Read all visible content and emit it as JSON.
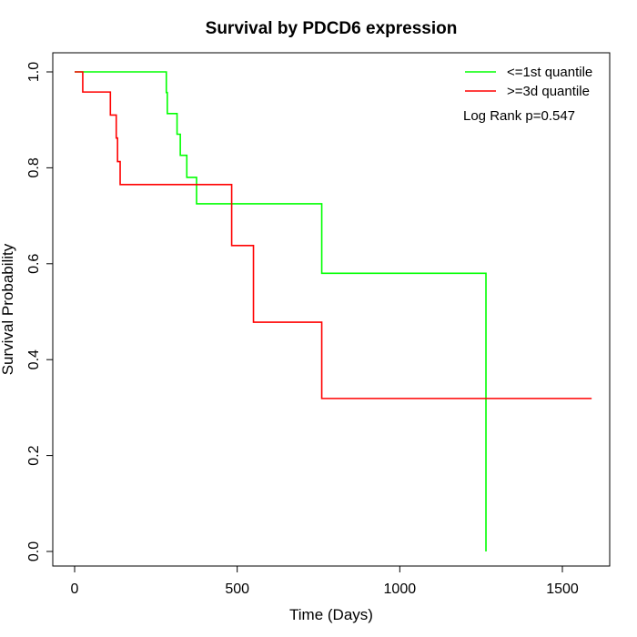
{
  "chart_data": {
    "type": "line",
    "title": "Survival by PDCD6 expression",
    "xlabel": "Time (Days)",
    "ylabel": "Survival Probability",
    "xlim": [
      0,
      1650
    ],
    "ylim": [
      0,
      1
    ],
    "xticks": [
      0,
      500,
      1000,
      1500
    ],
    "yticks": [
      0.0,
      0.2,
      0.4,
      0.6,
      0.8,
      1.0
    ],
    "xtick_labels": [
      "0",
      "500",
      "1000",
      "1500"
    ],
    "ytick_labels": [
      "0.0",
      "0.2",
      "0.4",
      "0.6",
      "0.8",
      "1.0"
    ],
    "grid": false,
    "legend_position": "top-right",
    "annotation": "Log Rank p=0.547",
    "series": [
      {
        "name": "<=1st quantile",
        "color": "#00ff00",
        "x": [
          0,
          278,
          282,
          285,
          315,
          325,
          345,
          375,
          760,
          1265
        ],
        "y": [
          1.0,
          1.0,
          0.957,
          0.913,
          0.87,
          0.826,
          0.78,
          0.725,
          0.58,
          0.0
        ]
      },
      {
        "name": ">=3d quantile",
        "color": "#ff0000",
        "x": [
          0,
          25,
          110,
          128,
          132,
          140,
          483,
          550,
          760,
          1590
        ],
        "y": [
          1.0,
          0.958,
          0.91,
          0.862,
          0.813,
          0.765,
          0.638,
          0.478,
          0.319,
          0.319
        ]
      }
    ]
  }
}
